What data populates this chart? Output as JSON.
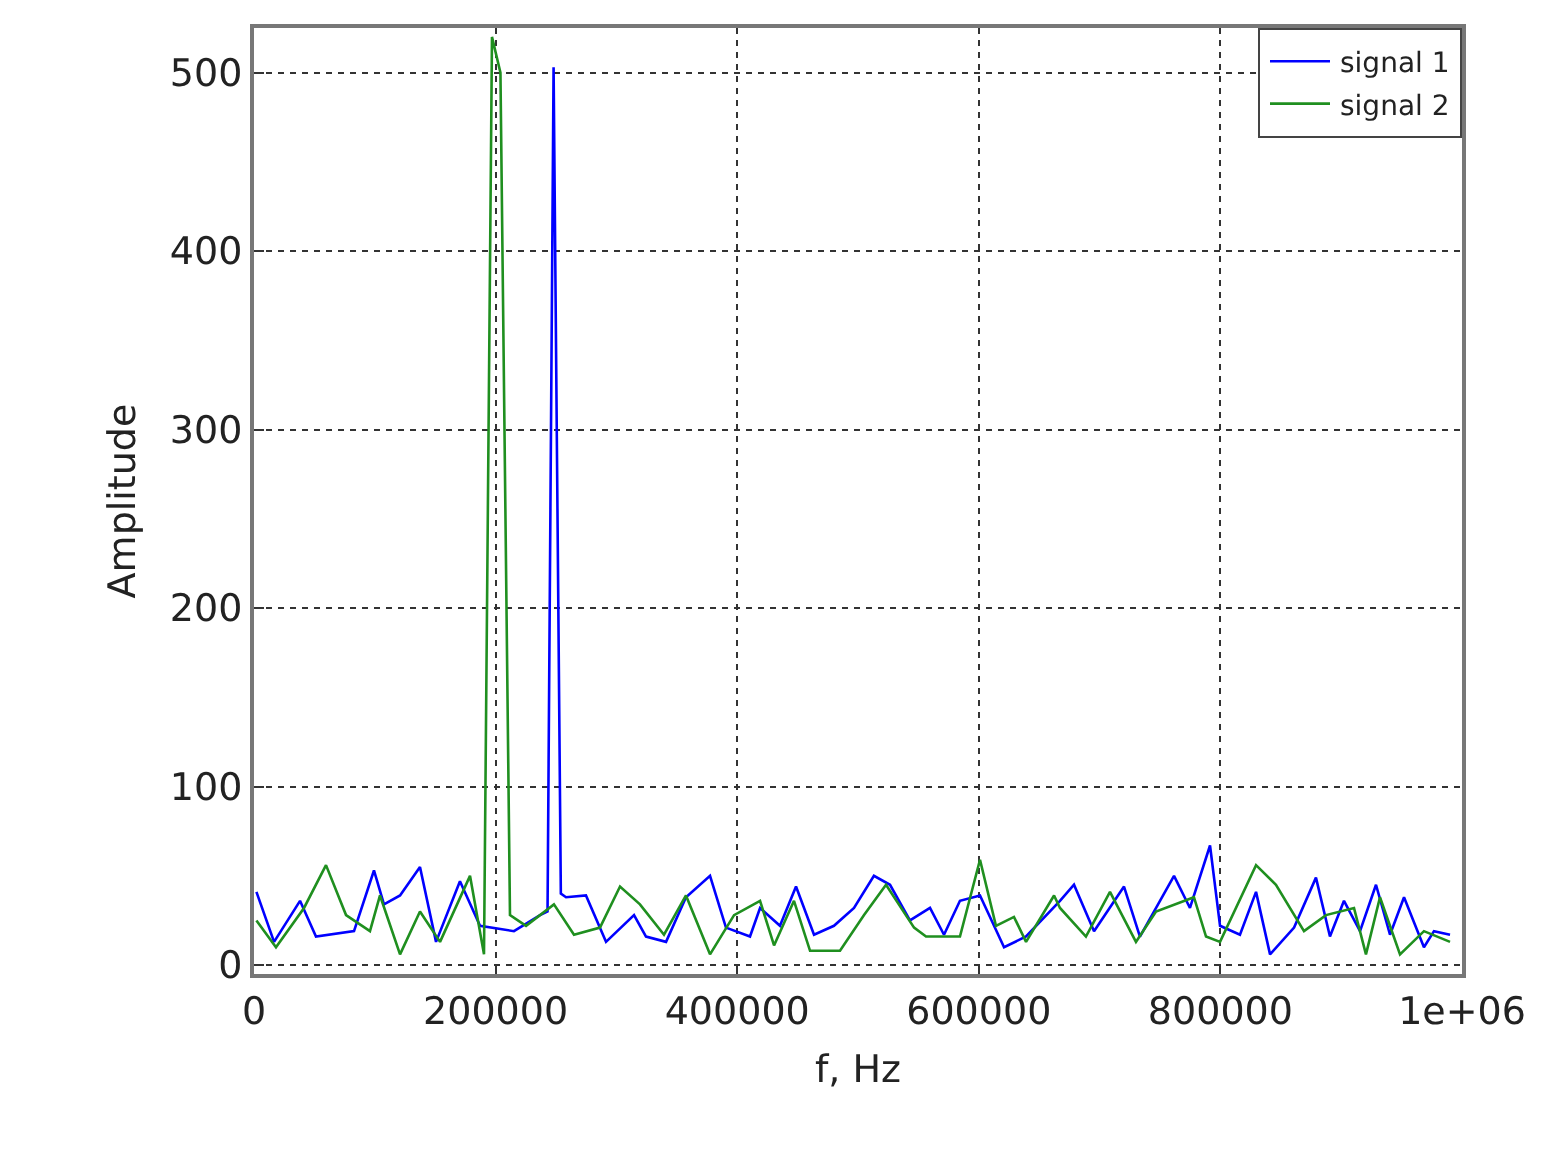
{
  "chart_data": {
    "type": "line",
    "xlabel": "f, Hz",
    "ylabel": "Amplitude",
    "xlim": [
      0,
      1000000
    ],
    "ylim": [
      -5,
      525
    ],
    "xticks": [
      0,
      200000,
      400000,
      600000,
      800000,
      {
        "value": 1000000,
        "label": "1e+06"
      }
    ],
    "yticks": [
      0,
      100,
      200,
      300,
      400,
      500
    ],
    "grid": true,
    "legend": "top right",
    "line_style": "solid",
    "marker": "none",
    "series": [
      {
        "name": "signal 1",
        "color": "#0000ff",
        "x": [
          2000,
          16600,
          38100,
          51300,
          82800,
          99300,
          107600,
          120900,
          137400,
          150700,
          170500,
          187100,
          215200,
          236800,
          243000,
          248000,
          254000,
          258300,
          274800,
          291400,
          314600,
          324500,
          341100,
          357600,
          377500,
          390700,
          410600,
          418900,
          435400,
          448700,
          463600,
          480100,
          496700,
          513200,
          526500,
          543000,
          559600,
          571200,
          584400,
          601000,
          620900,
          639100,
          667200,
          678800,
          695400,
          720200,
          733400,
          761600,
          774800,
          791400,
          799700,
          816200,
          829500,
          841100,
          861000,
          879100,
          890700,
          902300,
          915600,
          928800,
          940400,
          952000,
          968500,
          976800,
          990100
        ],
        "values": [
          41,
          13,
          36,
          16,
          19,
          53,
          34,
          39,
          55,
          13,
          47,
          22,
          19,
          28,
          30,
          503,
          40,
          38,
          39,
          13,
          28,
          16,
          13,
          38,
          50,
          21,
          16,
          32,
          22,
          44,
          17,
          22,
          32,
          50,
          45,
          25,
          32,
          17,
          36,
          39,
          10,
          16,
          36,
          45,
          19,
          44,
          16,
          50,
          32,
          67,
          22,
          17,
          41,
          6,
          21,
          49,
          16,
          36,
          19,
          45,
          17,
          38,
          10,
          19,
          17
        ]
      },
      {
        "name": "signal 2",
        "color": "#1f8f1f",
        "x": [
          2000,
          18200,
          41400,
          59600,
          76200,
          96000,
          104300,
          120900,
          137400,
          154000,
          178800,
          190400,
          197000,
          204000,
          211900,
          225200,
          248300,
          264900,
          286400,
          303000,
          319500,
          339400,
          357600,
          377500,
          397400,
          418900,
          430500,
          447000,
          460300,
          485100,
          505000,
          523200,
          546400,
          556300,
          584400,
          601000,
          614200,
          629100,
          639100,
          662300,
          667200,
          688700,
          708600,
          730100,
          746700,
          778100,
          788100,
          799700,
          829500,
          846000,
          869200,
          887400,
          910600,
          920500,
          932100,
          948700,
          968500,
          990100
        ],
        "values": [
          25,
          10,
          32,
          56,
          28,
          19,
          39,
          6,
          30,
          13,
          50,
          6,
          520,
          500,
          28,
          22,
          34,
          17,
          21,
          44,
          34,
          17,
          39,
          6,
          28,
          36,
          11,
          36,
          8,
          8,
          28,
          45,
          21,
          16,
          16,
          59,
          22,
          27,
          13,
          39,
          32,
          16,
          41,
          13,
          30,
          38,
          16,
          13,
          56,
          45,
          19,
          28,
          32,
          6,
          38,
          6,
          19,
          13
        ]
      }
    ]
  }
}
